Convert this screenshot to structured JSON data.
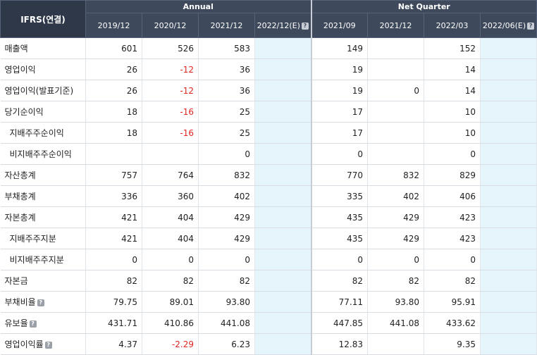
{
  "header": {
    "corner_label": "IFRS(연결)",
    "group_annual": "Annual",
    "group_quarter": "Net Quarter",
    "annual_cols": [
      "2019/12",
      "2020/12",
      "2021/12",
      "2022/12(E)"
    ],
    "quarter_cols": [
      "2021/09",
      "2021/12",
      "2022/03",
      "2022/06(E)"
    ],
    "help_icon": "?"
  },
  "rows": [
    {
      "label": "매출액",
      "sub": false,
      "help": false,
      "values": [
        "601",
        "526",
        "583",
        "",
        "149",
        "",
        "152",
        ""
      ]
    },
    {
      "label": "영업이익",
      "sub": false,
      "help": false,
      "values": [
        "26",
        "-12",
        "36",
        "",
        "19",
        "",
        "14",
        ""
      ]
    },
    {
      "label": "영업이익(발표기준)",
      "sub": false,
      "help": false,
      "values": [
        "26",
        "-12",
        "36",
        "",
        "19",
        "0",
        "14",
        ""
      ]
    },
    {
      "label": "당기순이익",
      "sub": false,
      "help": false,
      "values": [
        "18",
        "-16",
        "25",
        "",
        "17",
        "",
        "10",
        ""
      ]
    },
    {
      "label": "지배주주순이익",
      "sub": true,
      "help": false,
      "values": [
        "18",
        "-16",
        "25",
        "",
        "17",
        "",
        "10",
        ""
      ]
    },
    {
      "label": "비지배주주순이익",
      "sub": true,
      "help": false,
      "values": [
        "",
        "",
        "0",
        "",
        "0",
        "",
        "0",
        ""
      ]
    },
    {
      "label": "자산총계",
      "sub": false,
      "help": false,
      "values": [
        "757",
        "764",
        "832",
        "",
        "770",
        "832",
        "829",
        ""
      ]
    },
    {
      "label": "부채총계",
      "sub": false,
      "help": false,
      "values": [
        "336",
        "360",
        "402",
        "",
        "335",
        "402",
        "406",
        ""
      ]
    },
    {
      "label": "자본총계",
      "sub": false,
      "help": false,
      "values": [
        "421",
        "404",
        "429",
        "",
        "435",
        "429",
        "423",
        ""
      ]
    },
    {
      "label": "지배주주지분",
      "sub": true,
      "help": false,
      "values": [
        "421",
        "404",
        "429",
        "",
        "435",
        "429",
        "423",
        ""
      ]
    },
    {
      "label": "비지배주주지분",
      "sub": true,
      "help": false,
      "values": [
        "0",
        "0",
        "0",
        "",
        "0",
        "0",
        "0",
        ""
      ]
    },
    {
      "label": "자본금",
      "sub": false,
      "help": false,
      "values": [
        "82",
        "82",
        "82",
        "",
        "82",
        "82",
        "82",
        ""
      ]
    },
    {
      "label": "부채비율",
      "sub": false,
      "help": true,
      "values": [
        "79.75",
        "89.01",
        "93.80",
        "",
        "77.11",
        "93.80",
        "95.91",
        ""
      ]
    },
    {
      "label": "유보율",
      "sub": false,
      "help": true,
      "values": [
        "431.71",
        "410.86",
        "441.08",
        "",
        "447.85",
        "441.08",
        "433.62",
        ""
      ]
    },
    {
      "label": "영업이익률",
      "sub": false,
      "help": true,
      "values": [
        "4.37",
        "-2.29",
        "6.23",
        "",
        "12.83",
        "",
        "9.35",
        ""
      ]
    }
  ],
  "colors": {
    "negative": "#e0261f",
    "estimate_bg": "#e6f4fb",
    "header_bg": "#3e4a5c"
  }
}
